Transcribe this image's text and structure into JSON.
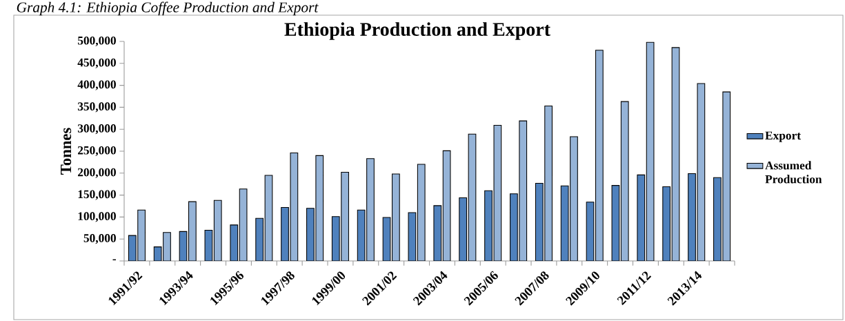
{
  "chart_data": {
    "type": "bar",
    "title": "Ethiopia Production and Export",
    "annotations": [
      "Graph 4.1: Ethiopia Coffee Production and Export"
    ],
    "ylabel": "Tonnes",
    "categories": [
      "1991/92",
      null,
      "1993/94",
      null,
      "1995/96",
      null,
      "1997/98",
      null,
      "1999/00",
      null,
      "2001/02",
      null,
      "2003/04",
      null,
      "2005/06",
      null,
      "2007/08",
      null,
      "2009/10",
      null,
      "2011/12",
      null,
      "2013/14",
      null
    ],
    "series": [
      {
        "name": "Export",
        "color": "#4f81bd",
        "values": [
          58000,
          32000,
          67000,
          70000,
          82000,
          97000,
          122000,
          120000,
          101000,
          116000,
          99000,
          110000,
          126000,
          144000,
          160000,
          153000,
          177000,
          171000,
          134000,
          172000,
          196000,
          169000,
          199000,
          190000
        ]
      },
      {
        "name": "Assumed Production",
        "color": "#95b3d7",
        "values": [
          116000,
          65000,
          135000,
          138000,
          164000,
          195000,
          246000,
          240000,
          202000,
          233000,
          198000,
          220000,
          251000,
          289000,
          309000,
          319000,
          353000,
          283000,
          480000,
          363000,
          498000,
          486000,
          404000,
          385000
        ]
      }
    ],
    "ylim": [
      0,
      500000
    ],
    "yticks": [
      {
        "value": 0,
        "label": "-"
      },
      {
        "value": 50000,
        "label": "50,000"
      },
      {
        "value": 100000,
        "label": "100,000"
      },
      {
        "value": 150000,
        "label": "150,000"
      },
      {
        "value": 200000,
        "label": "200,000"
      },
      {
        "value": 250000,
        "label": "250,000"
      },
      {
        "value": 300000,
        "label": "300,000"
      },
      {
        "value": 350000,
        "label": "350,000"
      },
      {
        "value": 400000,
        "label": "400,000"
      },
      {
        "value": 450000,
        "label": "450,000"
      },
      {
        "value": 500000,
        "label": "500,000"
      }
    ],
    "legend": "right",
    "grid": false
  }
}
